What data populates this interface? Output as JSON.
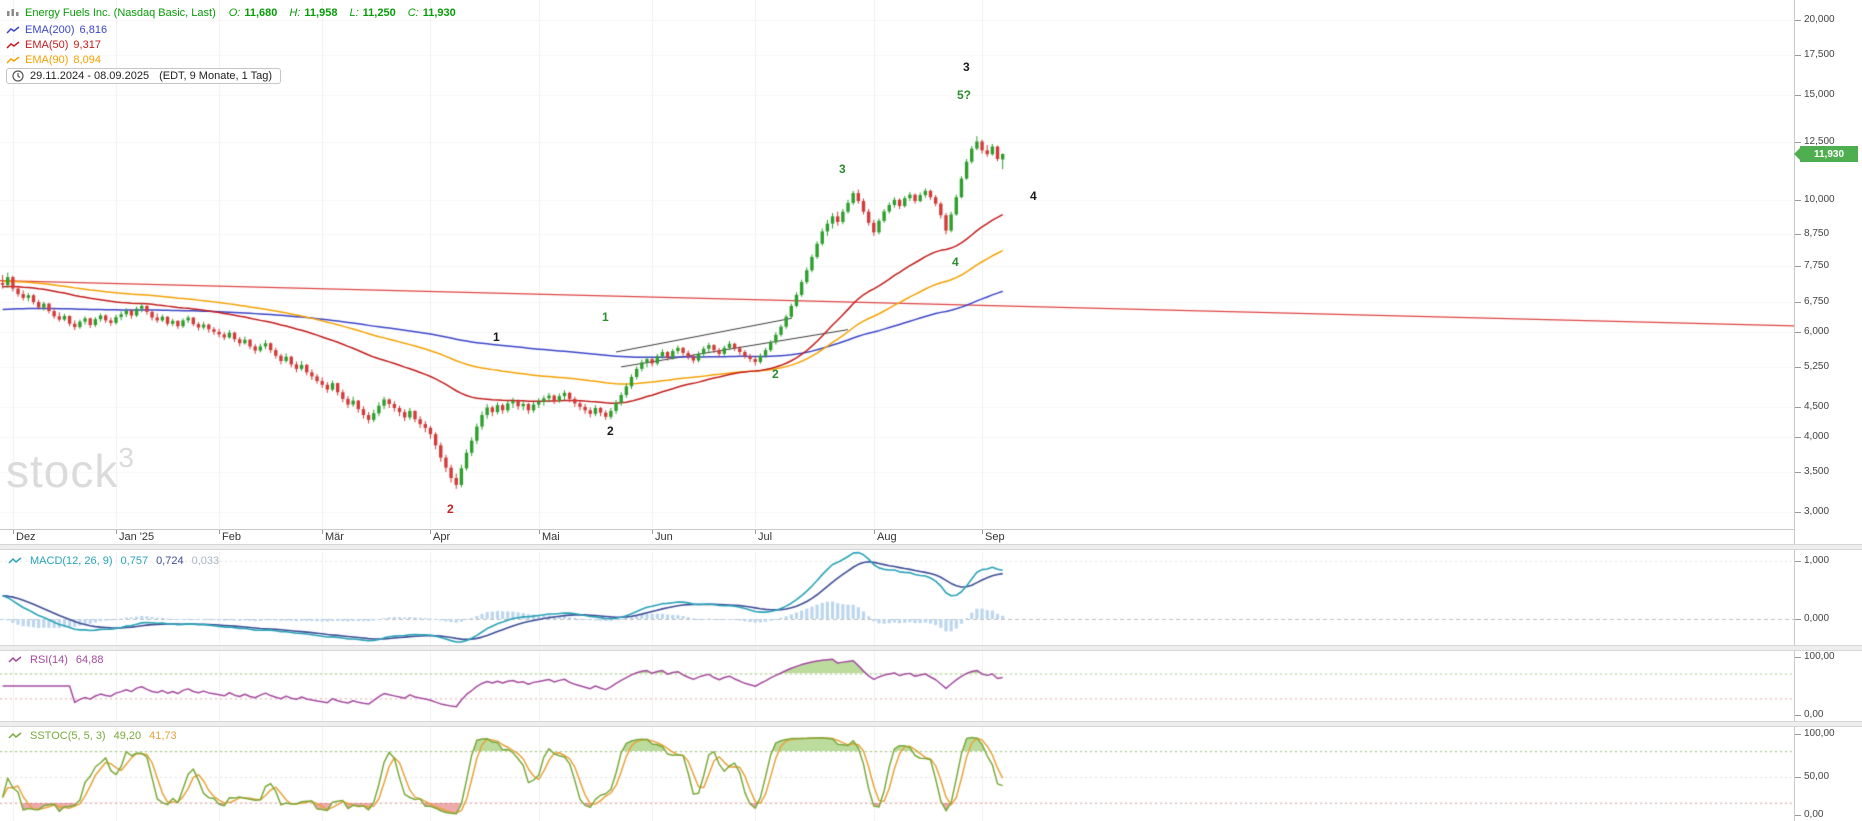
{
  "header": {
    "title": "Energy Fuels Inc. (Nasdaq Basic, Last)",
    "ohlc_labels": {
      "o": "O:",
      "h": "H:",
      "l": "L:",
      "c": "C:"
    },
    "ohlc": {
      "o": "11,680",
      "h": "11,958",
      "l": "11,250",
      "c": "11,930"
    },
    "overlays": [
      {
        "name": "EMA(200)",
        "value": "6,816",
        "color": "#3c45c8"
      },
      {
        "name": "EMA(50)",
        "value": "9,317",
        "color": "#c21d1d"
      },
      {
        "name": "EMA(90)",
        "value": "8,094",
        "color": "#f5a100"
      }
    ],
    "range_text": "29.11.2024 - 08.09.2025",
    "range_zone": "(EDT, 9 Monate, 1 Tag)"
  },
  "watermark": {
    "base": "stock",
    "sup": "3"
  },
  "chart_data": {
    "type": "candlestick",
    "symbol": "Energy Fuels Inc.",
    "scale": "log",
    "colors": {
      "up": "#2f9e2f",
      "down": "#d23b3b",
      "grid": "#f0f0f0"
    },
    "price_axis": {
      "min": 3,
      "max": 20,
      "ticks": [
        {
          "v": 20,
          "label": "20,000"
        },
        {
          "v": 17.5,
          "label": "17,500"
        },
        {
          "v": 15,
          "label": "15,000"
        },
        {
          "v": 12.5,
          "label": "12,500"
        },
        {
          "v": 10,
          "label": "10,000"
        },
        {
          "v": 8.75,
          "label": "8,750"
        },
        {
          "v": 7.75,
          "label": "7,750"
        },
        {
          "v": 6.75,
          "label": "6,750"
        },
        {
          "v": 6,
          "label": "6,000"
        },
        {
          "v": 5.25,
          "label": "5,250"
        },
        {
          "v": 4.5,
          "label": "4,500"
        },
        {
          "v": 4,
          "label": "4,000"
        },
        {
          "v": 3.5,
          "label": "3,500"
        },
        {
          "v": 3,
          "label": "3,000"
        }
      ]
    },
    "time_axis": [
      {
        "i": 2,
        "label": "Dez"
      },
      {
        "i": 22,
        "label": "Jan '25"
      },
      {
        "i": 42,
        "label": "Feb"
      },
      {
        "i": 62,
        "label": "Mär"
      },
      {
        "i": 83,
        "label": "Apr"
      },
      {
        "i": 104,
        "label": "Mai"
      },
      {
        "i": 126,
        "label": "Jun"
      },
      {
        "i": 146,
        "label": "Jul"
      },
      {
        "i": 169,
        "label": "Aug"
      },
      {
        "i": 190,
        "label": "Sep"
      }
    ],
    "plot": {
      "total_slots": 348,
      "candle_slots": 195
    },
    "last_price": {
      "value": 11.93,
      "label": "11,930",
      "direction": "up",
      "badge_color": "#4fae4f"
    },
    "trendline": {
      "i1": 0,
      "p1": 7.32,
      "i2": 348,
      "p2": 6.15,
      "color": "#dd4444"
    },
    "channel_lines": [
      {
        "i1": 119,
        "p1": 5.56,
        "i2": 153,
        "p2": 6.33,
        "color": "#3c3c3c"
      },
      {
        "i1": 120,
        "p1": 5.25,
        "i2": 164,
        "p2": 6.06,
        "color": "#3c3c3c"
      }
    ],
    "emas": [
      {
        "period": 200,
        "seed": 6.55,
        "color": "#3c45c8"
      },
      {
        "period": 90,
        "seed": 7.3,
        "color": "#f5a100"
      },
      {
        "period": 50,
        "seed": 7.15,
        "color": "#c21d1d"
      }
    ],
    "annotations": [
      {
        "i": 96,
        "p": 5.86,
        "text": "1",
        "color": "#1a1a1a"
      },
      {
        "i": 118,
        "p": 4.08,
        "text": "2",
        "color": "#1a1a1a"
      },
      {
        "i": 187,
        "p": 16.6,
        "text": "3",
        "color": "#1a1a1a"
      },
      {
        "i": 200,
        "p": 10.1,
        "text": "4",
        "color": "#1a1a1a"
      },
      {
        "i": 87,
        "p": 3.02,
        "text": "2",
        "color": "#c22525"
      },
      {
        "i": 117,
        "p": 6.35,
        "text": "1",
        "color": "#2e8b2e"
      },
      {
        "i": 150,
        "p": 5.09,
        "text": "2",
        "color": "#2e8b2e"
      },
      {
        "i": 163,
        "p": 11.2,
        "text": "3",
        "color": "#2e8b2e"
      },
      {
        "i": 185,
        "p": 7.85,
        "text": "4",
        "color": "#2e8b2e"
      },
      {
        "i": 186,
        "p": 14.9,
        "text": "5?",
        "color": "#2e8b2e"
      }
    ],
    "indicators": {
      "macd": {
        "label": "MACD(12, 26, 9)",
        "params": [
          12,
          26,
          9
        ],
        "values": [
          "0,757",
          "0,724",
          "0,033"
        ],
        "colors": {
          "macd": "#2aa3b7",
          "signal": "#3f4e96",
          "hist": "#bdd6ee",
          "muted": "#a9b6c6"
        },
        "axis": [
          {
            "v": 1,
            "label": "1,000"
          },
          {
            "v": 0,
            "label": "0,000"
          }
        ]
      },
      "rsi": {
        "label": "RSI(14)",
        "period": 14,
        "value": "64,88",
        "color": "#a44b9e",
        "upper": 70,
        "lower": 30,
        "axis": [
          {
            "v": 100,
            "label": "100,00"
          },
          {
            "v": 0,
            "label": "0,00"
          }
        ]
      },
      "sstoc": {
        "label": "SSTOC(5, 5, 3)",
        "params": [
          5,
          5,
          3
        ],
        "values": [
          "49,20",
          "41,73"
        ],
        "colors": {
          "k": "#7aa93c",
          "d": "#e8a23b"
        },
        "upper": 80,
        "lower": 20,
        "axis": [
          {
            "v": 100,
            "label": "100,00"
          },
          {
            "v": 50,
            "label": "50,00"
          },
          {
            "v": 0,
            "label": "0,00"
          }
        ]
      }
    },
    "candles": [
      [
        7.25,
        7.48,
        7.1,
        7.2
      ],
      [
        7.2,
        7.55,
        7.12,
        7.42
      ],
      [
        7.42,
        7.46,
        7.02,
        7.1
      ],
      [
        7.1,
        7.18,
        6.88,
        6.95
      ],
      [
        6.95,
        7.05,
        6.78,
        6.85
      ],
      [
        6.85,
        6.98,
        6.76,
        6.92
      ],
      [
        6.92,
        6.95,
        6.68,
        6.74
      ],
      [
        6.74,
        6.8,
        6.55,
        6.6
      ],
      [
        6.6,
        6.75,
        6.52,
        6.7
      ],
      [
        6.7,
        6.72,
        6.45,
        6.51
      ],
      [
        6.51,
        6.58,
        6.32,
        6.38
      ],
      [
        6.38,
        6.48,
        6.25,
        6.3
      ],
      [
        6.3,
        6.44,
        6.26,
        6.39
      ],
      [
        6.39,
        6.4,
        6.14,
        6.2
      ],
      [
        6.2,
        6.28,
        6.05,
        6.12
      ],
      [
        6.12,
        6.3,
        6.08,
        6.25
      ],
      [
        6.25,
        6.38,
        6.18,
        6.33
      ],
      [
        6.33,
        6.35,
        6.1,
        6.17
      ],
      [
        6.17,
        6.36,
        6.12,
        6.31
      ],
      [
        6.31,
        6.45,
        6.25,
        6.4
      ],
      [
        6.4,
        6.43,
        6.22,
        6.28
      ],
      [
        6.28,
        6.35,
        6.15,
        6.22
      ],
      [
        6.22,
        6.42,
        6.18,
        6.36
      ],
      [
        6.36,
        6.5,
        6.28,
        6.43
      ],
      [
        6.43,
        6.58,
        6.36,
        6.52
      ],
      [
        6.52,
        6.55,
        6.32,
        6.4
      ],
      [
        6.4,
        6.62,
        6.36,
        6.57
      ],
      [
        6.57,
        6.7,
        6.48,
        6.64
      ],
      [
        6.64,
        6.66,
        6.42,
        6.49
      ],
      [
        6.49,
        6.52,
        6.28,
        6.35
      ],
      [
        6.35,
        6.45,
        6.22,
        6.28
      ],
      [
        6.28,
        6.42,
        6.24,
        6.37
      ],
      [
        6.37,
        6.38,
        6.15,
        6.2
      ],
      [
        6.2,
        6.32,
        6.14,
        6.27
      ],
      [
        6.27,
        6.28,
        6.08,
        6.14
      ],
      [
        6.14,
        6.33,
        6.1,
        6.28
      ],
      [
        6.28,
        6.4,
        6.22,
        6.35
      ],
      [
        6.35,
        6.36,
        6.14,
        6.19
      ],
      [
        6.19,
        6.24,
        6.04,
        6.11
      ],
      [
        6.11,
        6.25,
        6.06,
        6.18
      ],
      [
        6.18,
        6.2,
        5.99,
        6.07
      ],
      [
        6.07,
        6.12,
        5.94,
        6.01
      ],
      [
        6.01,
        6.08,
        5.88,
        5.95
      ],
      [
        5.95,
        6.0,
        5.82,
        5.88
      ],
      [
        5.88,
        6.05,
        5.85,
        5.99
      ],
      [
        5.99,
        6.01,
        5.78,
        5.84
      ],
      [
        5.84,
        5.89,
        5.68,
        5.75
      ],
      [
        5.75,
        5.9,
        5.72,
        5.83
      ],
      [
        5.83,
        5.85,
        5.62,
        5.68
      ],
      [
        5.68,
        5.73,
        5.52,
        5.59
      ],
      [
        5.59,
        5.74,
        5.55,
        5.68
      ],
      [
        5.68,
        5.82,
        5.62,
        5.75
      ],
      [
        5.75,
        5.77,
        5.54,
        5.6
      ],
      [
        5.6,
        5.65,
        5.42,
        5.48
      ],
      [
        5.48,
        5.52,
        5.3,
        5.37
      ],
      [
        5.37,
        5.53,
        5.33,
        5.46
      ],
      [
        5.46,
        5.48,
        5.24,
        5.3
      ],
      [
        5.3,
        5.36,
        5.14,
        5.21
      ],
      [
        5.21,
        5.37,
        5.17,
        5.29
      ],
      [
        5.29,
        5.31,
        5.08,
        5.14
      ],
      [
        5.14,
        5.2,
        4.99,
        5.06
      ],
      [
        5.06,
        5.11,
        4.92,
        4.97
      ],
      [
        4.97,
        5.04,
        4.84,
        4.9
      ],
      [
        4.9,
        4.95,
        4.75,
        4.81
      ],
      [
        4.81,
        4.98,
        4.78,
        4.93
      ],
      [
        4.93,
        4.94,
        4.7,
        4.76
      ],
      [
        4.76,
        4.81,
        4.58,
        4.64
      ],
      [
        4.64,
        4.69,
        4.48,
        4.54
      ],
      [
        4.54,
        4.68,
        4.5,
        4.61
      ],
      [
        4.61,
        4.62,
        4.4,
        4.46
      ],
      [
        4.46,
        4.51,
        4.3,
        4.36
      ],
      [
        4.36,
        4.41,
        4.22,
        4.28
      ],
      [
        4.28,
        4.45,
        4.24,
        4.39
      ],
      [
        4.39,
        4.58,
        4.34,
        4.52
      ],
      [
        4.52,
        4.68,
        4.46,
        4.63
      ],
      [
        4.63,
        4.65,
        4.48,
        4.55
      ],
      [
        4.55,
        4.6,
        4.42,
        4.48
      ],
      [
        4.48,
        4.52,
        4.34,
        4.41
      ],
      [
        4.41,
        4.46,
        4.26,
        4.32
      ],
      [
        4.32,
        4.48,
        4.28,
        4.43
      ],
      [
        4.43,
        4.44,
        4.24,
        4.29
      ],
      [
        4.29,
        4.34,
        4.15,
        4.21
      ],
      [
        4.21,
        4.26,
        4.08,
        4.15
      ],
      [
        4.15,
        4.18,
        3.98,
        4.05
      ],
      [
        4.05,
        4.08,
        3.82,
        3.88
      ],
      [
        3.88,
        3.92,
        3.64,
        3.7
      ],
      [
        3.7,
        3.74,
        3.5,
        3.56
      ],
      [
        3.56,
        3.6,
        3.36,
        3.42
      ],
      [
        3.42,
        3.48,
        3.28,
        3.33
      ],
      [
        3.33,
        3.6,
        3.3,
        3.55
      ],
      [
        3.55,
        3.82,
        3.52,
        3.77
      ],
      [
        3.77,
        4.0,
        3.72,
        3.95
      ],
      [
        3.95,
        4.22,
        3.9,
        4.17
      ],
      [
        4.17,
        4.42,
        4.12,
        4.36
      ],
      [
        4.36,
        4.55,
        4.3,
        4.49
      ],
      [
        4.49,
        4.52,
        4.34,
        4.41
      ],
      [
        4.41,
        4.58,
        4.37,
        4.53
      ],
      [
        4.53,
        4.56,
        4.38,
        4.44
      ],
      [
        4.44,
        4.61,
        4.4,
        4.56
      ],
      [
        4.56,
        4.66,
        4.48,
        4.6
      ],
      [
        4.6,
        4.63,
        4.45,
        4.51
      ],
      [
        4.51,
        4.6,
        4.44,
        4.55
      ],
      [
        4.55,
        4.57,
        4.38,
        4.44
      ],
      [
        4.44,
        4.59,
        4.4,
        4.54
      ],
      [
        4.54,
        4.65,
        4.48,
        4.59
      ],
      [
        4.59,
        4.7,
        4.52,
        4.65
      ],
      [
        4.65,
        4.75,
        4.58,
        4.7
      ],
      [
        4.7,
        4.72,
        4.55,
        4.61
      ],
      [
        4.61,
        4.74,
        4.57,
        4.69
      ],
      [
        4.69,
        4.8,
        4.62,
        4.75
      ],
      [
        4.75,
        4.77,
        4.58,
        4.64
      ],
      [
        4.64,
        4.68,
        4.5,
        4.56
      ],
      [
        4.56,
        4.6,
        4.44,
        4.5
      ],
      [
        4.5,
        4.55,
        4.38,
        4.44
      ],
      [
        4.44,
        4.49,
        4.32,
        4.38
      ],
      [
        4.38,
        4.53,
        4.34,
        4.48
      ],
      [
        4.48,
        4.5,
        4.34,
        4.4
      ],
      [
        4.4,
        4.44,
        4.28,
        4.33
      ],
      [
        4.33,
        4.48,
        4.29,
        4.43
      ],
      [
        4.43,
        4.62,
        4.38,
        4.57
      ],
      [
        4.57,
        4.76,
        4.52,
        4.71
      ],
      [
        4.71,
        4.92,
        4.66,
        4.87
      ],
      [
        4.87,
        5.1,
        4.82,
        5.05
      ],
      [
        5.05,
        5.26,
        5.0,
        5.21
      ],
      [
        5.21,
        5.4,
        5.16,
        5.34
      ],
      [
        5.34,
        5.46,
        5.24,
        5.41
      ],
      [
        5.41,
        5.43,
        5.26,
        5.32
      ],
      [
        5.32,
        5.52,
        5.28,
        5.47
      ],
      [
        5.47,
        5.62,
        5.42,
        5.56
      ],
      [
        5.56,
        5.58,
        5.38,
        5.44
      ],
      [
        5.44,
        5.63,
        5.4,
        5.58
      ],
      [
        5.58,
        5.7,
        5.52,
        5.65
      ],
      [
        5.65,
        5.67,
        5.48,
        5.54
      ],
      [
        5.54,
        5.59,
        5.4,
        5.46
      ],
      [
        5.46,
        5.51,
        5.32,
        5.38
      ],
      [
        5.38,
        5.57,
        5.34,
        5.52
      ],
      [
        5.52,
        5.68,
        5.46,
        5.63
      ],
      [
        5.63,
        5.76,
        5.56,
        5.71
      ],
      [
        5.71,
        5.73,
        5.54,
        5.6
      ],
      [
        5.6,
        5.65,
        5.46,
        5.52
      ],
      [
        5.52,
        5.7,
        5.48,
        5.65
      ],
      [
        5.65,
        5.8,
        5.6,
        5.74
      ],
      [
        5.74,
        5.76,
        5.58,
        5.64
      ],
      [
        5.64,
        5.68,
        5.5,
        5.56
      ],
      [
        5.56,
        5.6,
        5.42,
        5.47
      ],
      [
        5.47,
        5.52,
        5.35,
        5.41
      ],
      [
        5.41,
        5.46,
        5.28,
        5.35
      ],
      [
        5.35,
        5.53,
        5.31,
        5.48
      ],
      [
        5.48,
        5.65,
        5.44,
        5.6
      ],
      [
        5.6,
        5.82,
        5.56,
        5.77
      ],
      [
        5.77,
        6.0,
        5.72,
        5.94
      ],
      [
        5.94,
        6.18,
        5.9,
        6.13
      ],
      [
        6.13,
        6.42,
        6.08,
        6.37
      ],
      [
        6.37,
        6.7,
        6.32,
        6.64
      ],
      [
        6.64,
        7.0,
        6.6,
        6.93
      ],
      [
        6.93,
        7.35,
        6.88,
        7.28
      ],
      [
        7.28,
        7.7,
        7.22,
        7.62
      ],
      [
        7.62,
        8.1,
        7.56,
        8.02
      ],
      [
        8.02,
        8.52,
        7.96,
        8.44
      ],
      [
        8.44,
        8.95,
        8.38,
        8.85
      ],
      [
        8.85,
        9.25,
        8.7,
        9.12
      ],
      [
        9.12,
        9.5,
        8.95,
        9.38
      ],
      [
        9.38,
        9.55,
        9.05,
        9.18
      ],
      [
        9.18,
        9.65,
        9.1,
        9.55
      ],
      [
        9.55,
        10.0,
        9.48,
        9.88
      ],
      [
        9.88,
        10.35,
        9.8,
        10.26
      ],
      [
        10.26,
        10.4,
        9.85,
        9.95
      ],
      [
        9.95,
        10.05,
        9.45,
        9.55
      ],
      [
        9.55,
        9.65,
        9.05,
        9.15
      ],
      [
        9.15,
        9.25,
        8.7,
        8.82
      ],
      [
        8.82,
        9.3,
        8.75,
        9.22
      ],
      [
        9.22,
        9.65,
        9.15,
        9.56
      ],
      [
        9.56,
        9.9,
        9.48,
        9.8
      ],
      [
        9.8,
        10.1,
        9.7,
        10.0
      ],
      [
        10.0,
        10.05,
        9.65,
        9.76
      ],
      [
        9.76,
        10.15,
        9.7,
        10.06
      ],
      [
        10.06,
        10.3,
        9.95,
        10.2
      ],
      [
        10.2,
        10.24,
        9.85,
        9.95
      ],
      [
        9.95,
        10.28,
        9.9,
        10.18
      ],
      [
        10.18,
        10.45,
        10.08,
        10.35
      ],
      [
        10.35,
        10.4,
        10.0,
        10.1
      ],
      [
        10.1,
        10.18,
        9.75,
        9.85
      ],
      [
        9.85,
        9.92,
        9.3,
        9.42
      ],
      [
        9.42,
        9.5,
        8.75,
        8.88
      ],
      [
        8.88,
        9.55,
        8.82,
        9.45
      ],
      [
        9.45,
        10.2,
        9.4,
        10.1
      ],
      [
        10.1,
        10.95,
        10.05,
        10.85
      ],
      [
        10.85,
        11.7,
        10.8,
        11.58
      ],
      [
        11.58,
        12.3,
        11.5,
        12.18
      ],
      [
        12.18,
        12.78,
        12.1,
        12.52
      ],
      [
        12.52,
        12.6,
        11.95,
        12.1
      ],
      [
        12.1,
        12.35,
        11.8,
        11.92
      ],
      [
        11.92,
        12.4,
        11.85,
        12.28
      ],
      [
        12.28,
        12.32,
        11.6,
        11.7
      ],
      [
        11.68,
        11.958,
        11.25,
        11.93
      ]
    ]
  }
}
